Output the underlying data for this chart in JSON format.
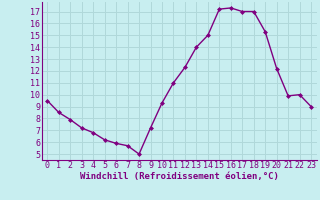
{
  "x": [
    0,
    1,
    2,
    3,
    4,
    5,
    6,
    7,
    8,
    9,
    10,
    11,
    12,
    13,
    14,
    15,
    16,
    17,
    18,
    19,
    20,
    21,
    22,
    23
  ],
  "y": [
    9.5,
    8.5,
    7.9,
    7.2,
    6.8,
    6.2,
    5.9,
    5.7,
    5.0,
    7.2,
    9.3,
    11.0,
    12.3,
    14.0,
    15.0,
    17.2,
    17.3,
    17.0,
    17.0,
    15.3,
    12.2,
    9.9,
    10.0,
    9.0
  ],
  "line_color": "#800080",
  "marker": "D",
  "marker_size": 2,
  "bg_color": "#c8eef0",
  "grid_color": "#b0d8da",
  "xlabel": "Windchill (Refroidissement éolien,°C)",
  "xlabel_fontsize": 6.5,
  "yticks": [
    5,
    6,
    7,
    8,
    9,
    10,
    11,
    12,
    13,
    14,
    15,
    16,
    17
  ],
  "xticks": [
    0,
    1,
    2,
    3,
    4,
    5,
    6,
    7,
    8,
    9,
    10,
    11,
    12,
    13,
    14,
    15,
    16,
    17,
    18,
    19,
    20,
    21,
    22,
    23
  ],
  "ylim": [
    4.5,
    17.8
  ],
  "xlim": [
    -0.5,
    23.5
  ],
  "tick_fontsize": 6,
  "line_width": 1.0
}
